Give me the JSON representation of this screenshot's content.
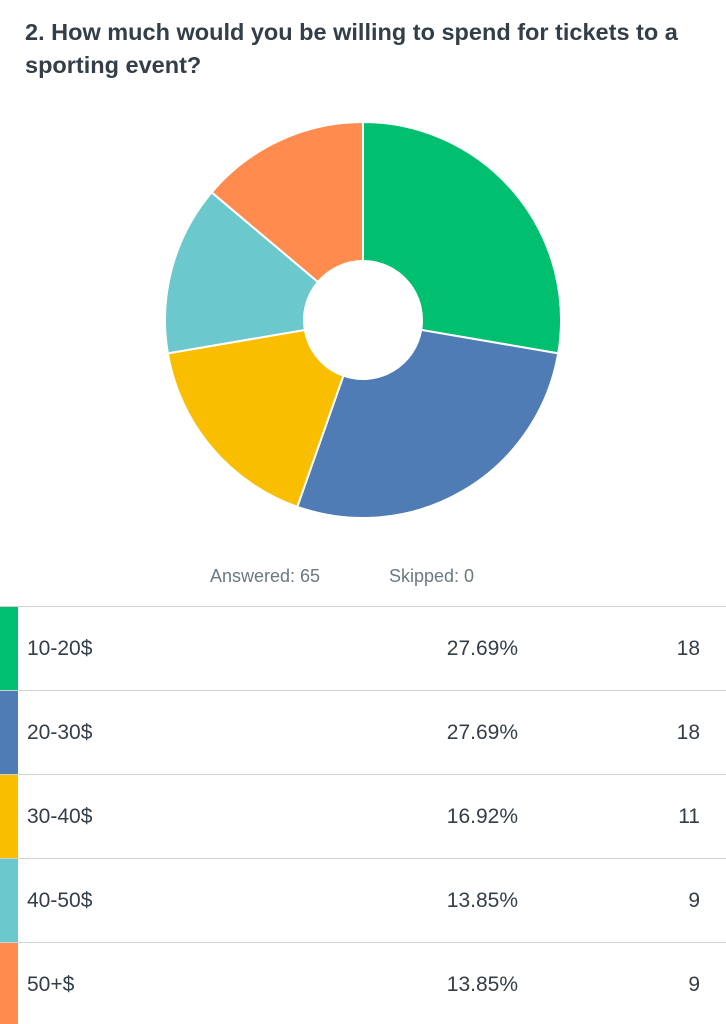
{
  "question": {
    "title": "2. How much would you be willing to spend for tickets to a sporting event?"
  },
  "summary": {
    "answered_label": "Answered: 65",
    "skipped_label": "Skipped: 0"
  },
  "chart_data": {
    "type": "pie",
    "variant": "donut",
    "title": "2. How much would you be willing to spend for tickets to a sporting event?",
    "categories": [
      "10-20$",
      "20-30$",
      "30-40$",
      "40-50$",
      "50+$"
    ],
    "values": [
      18,
      18,
      11,
      9,
      9
    ],
    "percentages": [
      "27.69%",
      "27.69%",
      "16.92%",
      "13.85%",
      "13.85%"
    ],
    "colors": [
      "#00bf6f",
      "#507cb6",
      "#f9be00",
      "#6bc8cd",
      "#ff8b4f"
    ],
    "total_answered": 65,
    "skipped": 0
  },
  "table": {
    "rows": [
      {
        "label": "10-20$",
        "percent": "27.69%",
        "count": "18",
        "color": "#00bf6f"
      },
      {
        "label": "20-30$",
        "percent": "27.69%",
        "count": "18",
        "color": "#507cb6"
      },
      {
        "label": "30-40$",
        "percent": "16.92%",
        "count": "11",
        "color": "#f9be00"
      },
      {
        "label": "40-50$",
        "percent": "13.85%",
        "count": "9",
        "color": "#6bc8cd"
      },
      {
        "label": "50+$",
        "percent": "13.85%",
        "count": "9",
        "color": "#ff8b4f"
      }
    ]
  }
}
